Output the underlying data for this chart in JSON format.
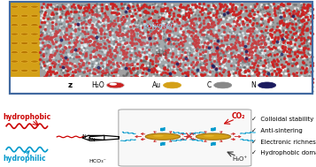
{
  "border_color": "#4169a0",
  "electrode_color": "#d4a017",
  "electrode_dark": "#b88010",
  "sim_bg_gray": "#9a9a9a",
  "bullet_items": [
    "Colloidal stability",
    "Anti-sintering",
    "Electronic richness",
    "Hydrophobic domain"
  ],
  "hydrophobic_color": "#cc0000",
  "hydrophilic_color": "#0099cc",
  "co2_color": "#cc0000",
  "water_red": "#cc2222",
  "water_white": "#f0f0f0",
  "atom_gray": "#888888",
  "atom_au": "#d4a017",
  "atom_n": "#1a1a5e",
  "polymer_label_color": "#88bbdd",
  "h2o_label_color": "#333333",
  "legend_bg": "#ffffff",
  "mid_box_bg": "#f5f5f5",
  "mid_box_edge": "#aaaaaa"
}
